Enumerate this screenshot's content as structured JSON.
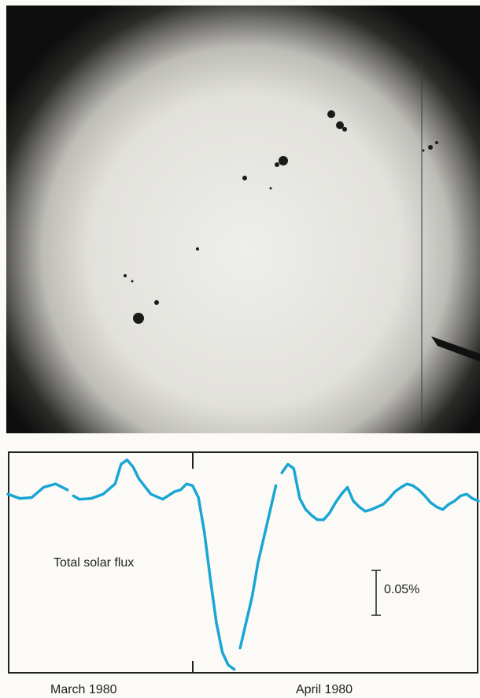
{
  "figure": {
    "photo": {
      "subject": "sun-disk-with-sunspots"
    },
    "colors": {
      "trace": "#1aa6d4",
      "frame": "#222222"
    }
  },
  "chart_data": {
    "type": "line",
    "title": "",
    "xlabel": "",
    "ylabel": "",
    "x_unit": "day",
    "ylim": [
      -0.21,
      0.05
    ],
    "grid": false,
    "annotations": {
      "series_label": "Total solar flux",
      "scale_bar_label": "0.05%",
      "scale_bar_value": 0.05
    },
    "month_labels": [
      {
        "label": "March 1980",
        "start_day": 0
      },
      {
        "label": "April 1980",
        "start_day": 31
      }
    ],
    "xlim": [
      0,
      79
    ],
    "series": [
      {
        "name": "",
        "x": [
          0,
          2,
          4,
          6,
          8,
          10,
          11,
          12,
          14,
          16,
          18,
          19,
          20,
          21,
          22,
          24,
          26,
          28,
          29,
          30,
          31,
          32,
          33,
          34,
          35,
          36,
          37,
          38,
          39,
          40,
          41,
          42,
          43,
          44,
          45,
          46,
          47,
          48,
          49,
          50,
          51,
          52,
          53,
          54,
          55,
          56,
          57,
          58,
          59,
          60,
          61,
          62,
          63,
          64,
          65,
          66,
          67,
          68,
          69,
          70,
          71,
          72,
          73,
          74,
          75,
          76,
          77,
          78,
          79
        ],
        "y": [
          0.0,
          -0.005,
          -0.004,
          0.008,
          0.012,
          0.005,
          -0.002,
          -0.006,
          -0.005,
          0.0,
          0.012,
          0.035,
          0.04,
          0.032,
          0.018,
          0.0,
          -0.006,
          0.003,
          0.005,
          0.012,
          0.01,
          -0.004,
          -0.045,
          -0.1,
          -0.15,
          -0.185,
          -0.2,
          -0.205,
          -0.18,
          -0.15,
          -0.12,
          -0.08,
          -0.05,
          -0.02,
          0.01,
          0.025,
          0.035,
          0.03,
          -0.005,
          -0.018,
          -0.025,
          -0.03,
          -0.03,
          -0.022,
          -0.01,
          0.0,
          0.008,
          -0.008,
          -0.015,
          -0.02,
          -0.018,
          -0.015,
          -0.012,
          -0.005,
          0.003,
          0.008,
          0.012,
          0.01,
          0.005,
          -0.002,
          -0.01,
          -0.015,
          -0.018,
          -0.012,
          -0.008,
          -0.002,
          0.0,
          -0.005,
          -0.008
        ],
        "gaps_after_day": [
          10,
          38,
          45
        ]
      }
    ]
  }
}
